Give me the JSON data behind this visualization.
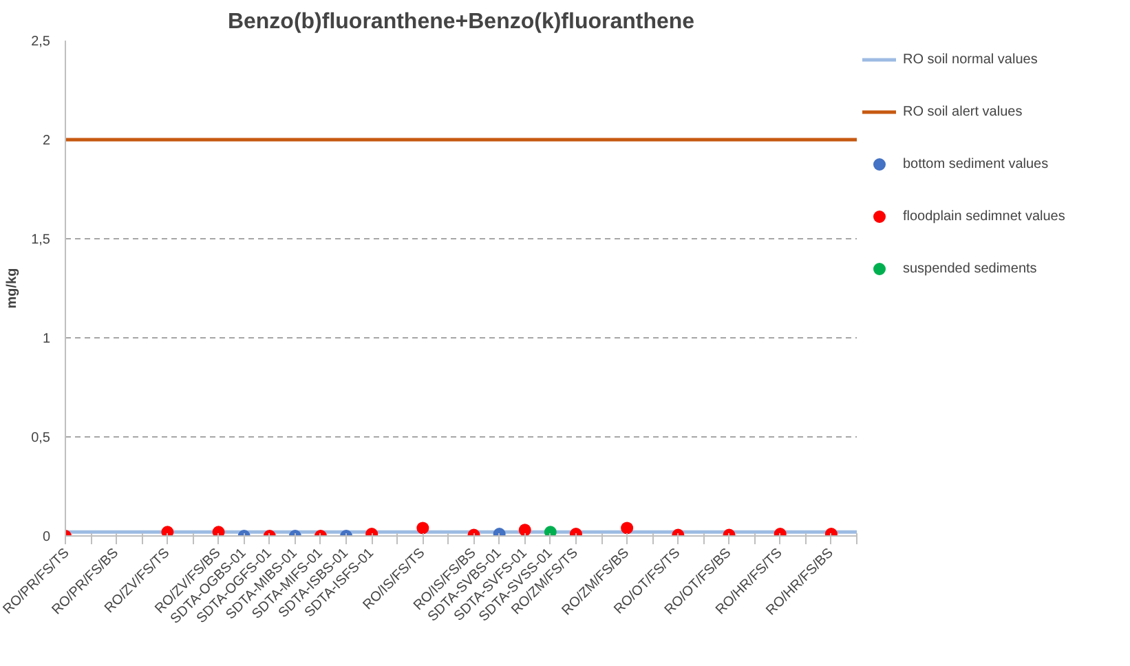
{
  "chart_data": {
    "type": "scatter",
    "title": "Benzo(b)fluoranthene+Benzo(k)fluoranthene",
    "ylabel": "mg/kg",
    "categories": [
      "RO/PR/FS/TS",
      null,
      "RO/PR/FS/BS",
      null,
      "RO/ZV/FS/TS",
      null,
      "RO/ZV/FS/BS",
      "SDTA-OGBS-01",
      "SDTA-OGFS-01",
      "SDTA-MIBS-01",
      "SDTA-MIFS-01",
      "SDTA-ISBS-01",
      "SDTA-ISFS-01",
      null,
      "RO/IS/FS/TS",
      null,
      "RO/IS/FS/BS",
      "SDTA-SVBS-01",
      "SDTA-SVFS-01",
      "SDTA-SVSS-01",
      "RO/ZM/FS/TS",
      null,
      "RO/ZM/FS/BS",
      null,
      "RO/OT/FS/TS",
      null,
      "RO/OT/FS/BS",
      null,
      "RO/HR/FS/TS",
      null,
      "RO/HR/FS/BS",
      null
    ],
    "ylim": [
      0,
      2.5
    ],
    "yticks": [
      0,
      {
        "value": 0.5,
        "label": "0,5"
      },
      1,
      {
        "value": 1.5,
        "label": "1,5"
      },
      2,
      {
        "value": 2.5,
        "label": "2,5"
      }
    ],
    "grid": "y",
    "legend": "right",
    "marker": "circle",
    "series": [
      {
        "name": "RO soil normal values",
        "type": "line",
        "marker": "none",
        "color": "#9dbbe3",
        "values": [
          0.02,
          0.02,
          0.02,
          0.02,
          0.02,
          0.02,
          0.02,
          0.02,
          0.02,
          0.02,
          0.02,
          0.02,
          0.02,
          0.02,
          0.02,
          0.02,
          0.02,
          0.02,
          0.02,
          0.02,
          0.02,
          0.02,
          0.02,
          0.02,
          0.02,
          0.02,
          0.02,
          0.02,
          0.02,
          0.02,
          0.02,
          0.02
        ]
      },
      {
        "name": "RO soil alert values",
        "type": "line",
        "marker": "none",
        "color": "#c65911",
        "values": [
          2,
          2,
          2,
          2,
          2,
          2,
          2,
          2,
          2,
          2,
          2,
          2,
          2,
          2,
          2,
          2,
          2,
          2,
          2,
          2,
          2,
          2,
          2,
          2,
          2,
          2,
          2,
          2,
          2,
          2,
          2,
          2
        ]
      },
      {
        "name": "bottom sediment values",
        "color": "#4472c4",
        "values": [
          null,
          null,
          null,
          null,
          null,
          null,
          null,
          0,
          null,
          0,
          null,
          0,
          null,
          null,
          null,
          null,
          null,
          0.01,
          null,
          null,
          null,
          null,
          null,
          null,
          null,
          null,
          null,
          null,
          null,
          null,
          null,
          null
        ]
      },
      {
        "name": "floodplain sedimnet values",
        "color": "#ff0000",
        "values": [
          0,
          null,
          null,
          null,
          0.02,
          null,
          0.02,
          null,
          0,
          null,
          0,
          null,
          0.01,
          null,
          0.04,
          null,
          0.005,
          null,
          0.03,
          null,
          0.01,
          null,
          0.04,
          null,
          0.005,
          null,
          0.005,
          null,
          0.01,
          null,
          0.01,
          null
        ]
      },
      {
        "name": "suspended sediments",
        "color": "#00b050",
        "values": [
          null,
          null,
          null,
          null,
          null,
          null,
          null,
          null,
          null,
          null,
          null,
          null,
          null,
          null,
          null,
          null,
          null,
          null,
          null,
          0.02,
          null,
          null,
          null,
          null,
          null,
          null,
          null,
          null,
          null,
          null,
          null,
          null
        ]
      }
    ]
  }
}
